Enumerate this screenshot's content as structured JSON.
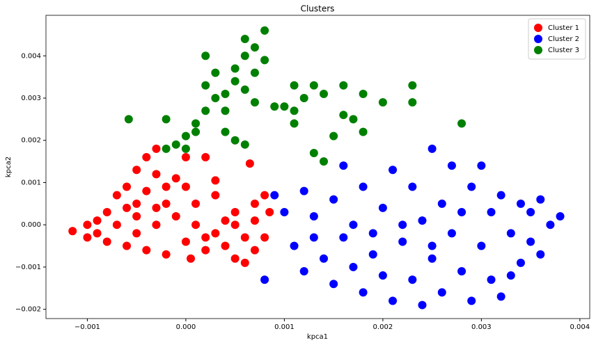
{
  "chart_data": {
    "type": "scatter",
    "title": "Clusters",
    "x_label": "kpca1",
    "y_label": "kpca2",
    "xlim": [
      -0.00142,
      0.0041
    ],
    "ylim": [
      -0.00222,
      0.00496
    ],
    "xticks": [
      {
        "value": -0.001,
        "label": "−0.001"
      },
      {
        "value": 0,
        "label": "0.000"
      },
      {
        "value": 0.001,
        "label": "0.001"
      },
      {
        "value": 0.002,
        "label": "0.002"
      },
      {
        "value": 0.003,
        "label": "0.003"
      },
      {
        "value": 0.004,
        "label": "0.004"
      }
    ],
    "yticks": [
      {
        "value": -0.002,
        "label": "−0.002"
      },
      {
        "value": -0.001,
        "label": "−0.001"
      },
      {
        "value": 0,
        "label": "0.000"
      },
      {
        "value": 0.001,
        "label": "0.001"
      },
      {
        "value": 0.002,
        "label": "0.002"
      },
      {
        "value": 0.003,
        "label": "0.003"
      },
      {
        "value": 0.004,
        "label": "0.004"
      }
    ],
    "legend": "upper right",
    "series": [
      {
        "name": "Cluster 1",
        "color": "#ff0000",
        "x": [
          -0.00115,
          -0.001,
          -0.0009,
          -0.0008,
          -0.0007,
          -0.0006,
          -0.0005,
          -0.0004,
          -0.0003,
          -0.0002,
          -0.0001,
          0.0,
          0.0002,
          -0.0003,
          0.00065,
          0.0003,
          0.0003,
          0.0005,
          0.0007,
          0.0008,
          0.00085,
          0.0008,
          0.0007,
          0.0006,
          0.0005,
          0.0004,
          0.0002,
          0.0,
          -0.0002,
          -0.0004,
          -0.0006,
          -0.0008,
          -0.001,
          -0.0007,
          -0.0005,
          -0.0003,
          -0.0001,
          0.0001,
          0.0003,
          0.0005,
          -0.0006,
          -0.0004,
          -0.0002,
          0.0001,
          0.0002,
          -0.0009,
          0.0006,
          0.0004,
          -0.0005,
          0.0,
          0.0007,
          5e-05,
          -0.0003,
          -0.0005
        ],
        "values": [
          -0.00015,
          -0.0003,
          0.0001,
          0.0003,
          0.0007,
          0.0009,
          0.0013,
          0.0016,
          0.0012,
          0.0009,
          0.0011,
          0.0016,
          0.0016,
          0.0018,
          0.00145,
          0.00105,
          0.0007,
          0.0003,
          0.0005,
          0.0007,
          0.0003,
          -0.0003,
          -0.0006,
          -0.0009,
          -0.0008,
          -0.0005,
          -0.0006,
          -0.0004,
          -0.0007,
          -0.0006,
          -0.0005,
          -0.0004,
          0.0,
          0.0,
          0.0002,
          0.0004,
          0.0002,
          0.0,
          -0.0002,
          0.0,
          0.0004,
          0.0008,
          0.0005,
          0.0005,
          -0.0003,
          -0.0002,
          -0.0003,
          0.0001,
          -0.0002,
          0.0009,
          0.0001,
          -0.0008,
          0.0,
          0.0005
        ]
      },
      {
        "name": "Cluster 2",
        "color": "#0000ff",
        "x": [
          0.0008,
          0.0009,
          0.001,
          0.0011,
          0.0012,
          0.0012,
          0.0013,
          0.0014,
          0.0015,
          0.0015,
          0.0016,
          0.0016,
          0.0017,
          0.0018,
          0.0018,
          0.0019,
          0.002,
          0.002,
          0.0021,
          0.0021,
          0.0022,
          0.0023,
          0.0023,
          0.0024,
          0.0024,
          0.0025,
          0.0025,
          0.0026,
          0.0026,
          0.0027,
          0.0027,
          0.0028,
          0.0029,
          0.0029,
          0.003,
          0.003,
          0.0031,
          0.0031,
          0.0032,
          0.0032,
          0.0033,
          0.0034,
          0.0034,
          0.0035,
          0.0035,
          0.0036,
          0.0037,
          0.0038,
          0.0036,
          0.0022,
          0.0025,
          0.0019,
          0.0028,
          0.0013,
          0.0033,
          0.0017
        ],
        "values": [
          -0.0013,
          0.0007,
          0.0003,
          -0.0005,
          0.0008,
          -0.0011,
          0.0002,
          -0.0008,
          0.0006,
          -0.0014,
          0.0014,
          -0.0003,
          0.0,
          0.0009,
          -0.0016,
          -0.0007,
          0.0004,
          -0.0012,
          0.0013,
          -0.0018,
          -0.0004,
          0.0009,
          -0.0013,
          0.0001,
          -0.0019,
          0.0018,
          -0.0008,
          0.0005,
          -0.0016,
          -0.0002,
          0.0014,
          -0.0011,
          0.0009,
          -0.0018,
          -0.0005,
          0.0014,
          0.0003,
          -0.0013,
          0.0007,
          -0.0017,
          -0.0002,
          0.0005,
          -0.0009,
          0.0003,
          -0.0004,
          0.0006,
          0.0,
          0.0002,
          -0.0007,
          0.0,
          -0.0005,
          -0.0002,
          0.0003,
          -0.0003,
          -0.0012,
          -0.001
        ]
      },
      {
        "name": "Cluster 3",
        "color": "#008000",
        "x": [
          -0.00058,
          -0.0002,
          -0.0002,
          -0.0001,
          0.0,
          0.0001,
          0.0001,
          0.0002,
          0.0002,
          0.0003,
          0.0003,
          0.0004,
          0.0004,
          0.0005,
          0.0005,
          0.0005,
          0.0006,
          0.0006,
          0.0007,
          0.0007,
          0.0008,
          0.0008,
          0.0006,
          0.0007,
          0.0004,
          0.0002,
          0.0009,
          0.001,
          0.0011,
          0.0011,
          0.0012,
          0.0013,
          0.0011,
          0.0013,
          0.0014,
          0.0014,
          0.0015,
          0.0016,
          0.0016,
          0.0018,
          0.0017,
          0.0018,
          0.002,
          0.0023,
          0.0023,
          0.0028,
          0.0,
          0.0006
        ],
        "values": [
          0.0025,
          0.0018,
          0.0025,
          0.0019,
          0.0021,
          0.0022,
          0.0024,
          0.0027,
          0.004,
          0.003,
          0.0036,
          0.0022,
          0.0031,
          0.0034,
          0.002,
          0.0037,
          0.0032,
          0.004,
          0.0042,
          0.0036,
          0.0046,
          0.0039,
          0.0044,
          0.0029,
          0.0027,
          0.0033,
          0.0028,
          0.0028,
          0.0033,
          0.0027,
          0.003,
          0.0033,
          0.0024,
          0.0017,
          0.0015,
          0.0031,
          0.0021,
          0.0033,
          0.0026,
          0.0031,
          0.0025,
          0.0022,
          0.0029,
          0.0033,
          0.0029,
          0.0024,
          0.0018,
          0.0019
        ]
      }
    ]
  }
}
